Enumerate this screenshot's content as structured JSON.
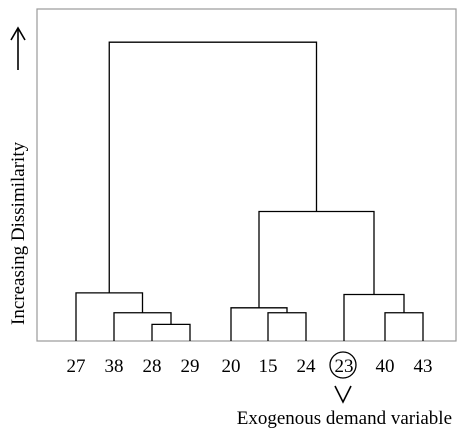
{
  "leaves": [
    "27",
    "38",
    "28",
    "29",
    "20",
    "15",
    "24",
    "23",
    "40",
    "43"
  ],
  "y_axis_label": "Increasing Dissimilarity",
  "highlighted_leaf": "23",
  "annotation": "Exogenous demand variable",
  "icons": {
    "y_arrow": "up-arrow-icon",
    "leaf_arrow": "down-chevron-icon"
  },
  "merges": [
    {
      "left": 2,
      "right": 3,
      "height": 0.05
    },
    {
      "left": 1,
      "right": 10,
      "height": 0.085
    },
    {
      "left": 0,
      "right": 11,
      "height": 0.145
    },
    {
      "left": 5,
      "right": 6,
      "height": 0.085
    },
    {
      "left": 4,
      "right": 13,
      "height": 0.1
    },
    {
      "left": 8,
      "right": 9,
      "height": 0.085
    },
    {
      "left": 7,
      "right": 15,
      "height": 0.14
    },
    {
      "left": 14,
      "right": 16,
      "height": 0.39
    },
    {
      "left": 12,
      "right": 17,
      "height": 0.9
    }
  ],
  "colors": {
    "frame": "#9a9a9a",
    "branch": "#000000"
  }
}
